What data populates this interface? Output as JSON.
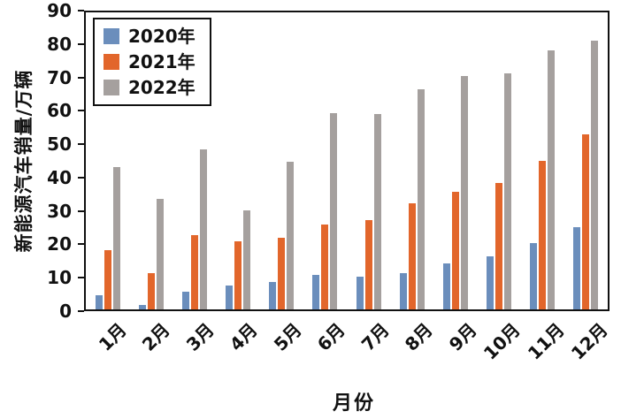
{
  "chart_data": {
    "type": "bar",
    "title": "",
    "xlabel": "月份",
    "ylabel": "新能源汽车销量/万辆",
    "categories": [
      "1月",
      "2月",
      "3月",
      "4月",
      "5月",
      "6月",
      "7月",
      "8月",
      "9月",
      "10月",
      "11月",
      "12月"
    ],
    "series": [
      {
        "name": "2020年",
        "color": "#6b8ebc",
        "values": [
          4.4,
          1.3,
          5.3,
          7.2,
          8.2,
          10.4,
          9.8,
          10.9,
          13.8,
          16.0,
          20.0,
          24.8
        ]
      },
      {
        "name": "2021年",
        "color": "#e2662b",
        "values": [
          17.9,
          11.0,
          22.6,
          20.6,
          21.7,
          25.6,
          27.1,
          32.1,
          35.7,
          38.3,
          45.0,
          53.1
        ]
      },
      {
        "name": "2022年",
        "color": "#a5a09e",
        "values": [
          43.2,
          33.4,
          48.4,
          29.9,
          44.7,
          59.6,
          59.3,
          66.6,
          70.8,
          71.4,
          78.6,
          81.4
        ]
      }
    ],
    "ylim": [
      0,
      90
    ],
    "ytick_step": 10,
    "grid": false,
    "legend_position": "top-left",
    "axis_color": "#111111",
    "background": "#ffffff"
  }
}
